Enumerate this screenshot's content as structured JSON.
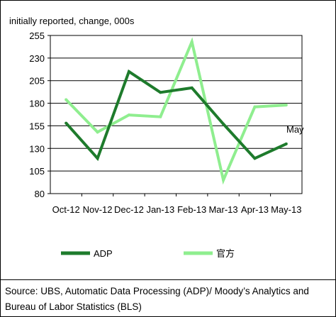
{
  "chart_data": {
    "type": "line",
    "title": "",
    "ylabel": "initially reported, change, 000s",
    "xlabel": "",
    "categories": [
      "Oct-12",
      "Nov-12",
      "Dec-12",
      "Jan-13",
      "Feb-13",
      "Mar-13",
      "Apr-13",
      "May-13"
    ],
    "ylim": [
      80,
      255
    ],
    "yticks": [
      80,
      105,
      130,
      155,
      180,
      205,
      230,
      255
    ],
    "grid": true,
    "legend_position": "bottom",
    "series": [
      {
        "name": "ADP",
        "color": "#1e7b2c",
        "values": [
          158,
          119,
          215,
          192,
          197,
          157,
          119,
          135
        ]
      },
      {
        "name": "官方",
        "color": "#8fee8f",
        "values": [
          184,
          148,
          167,
          165,
          248,
          95,
          176,
          178
        ]
      }
    ],
    "annotation": "May",
    "source": "Source: UBS, Automatic Data Processing (ADP)/ Moody’s Analytics and Bureau of Labor Statistics (BLS)"
  }
}
